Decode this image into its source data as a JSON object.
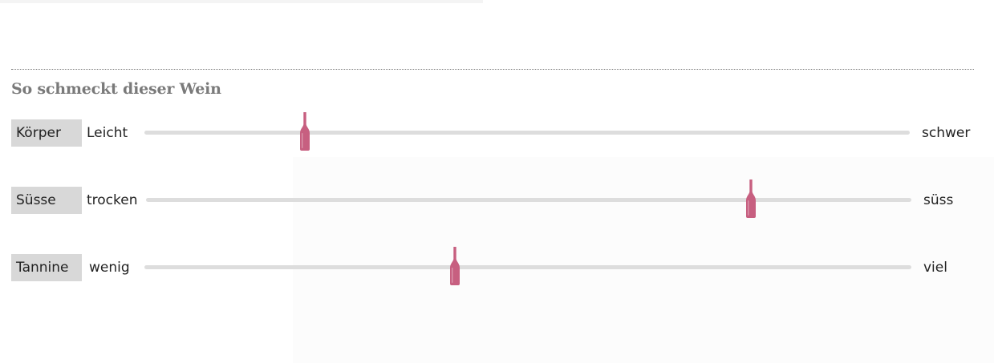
{
  "section": {
    "title": "So schmeckt dieser Wein"
  },
  "colors": {
    "marker": "#c75f80",
    "track": "#dddddd",
    "badge": "#d8d8d8",
    "title": "#7a7a7a"
  },
  "marker_icon": "wine-bottle-icon",
  "taste_profile": [
    {
      "name": "Körper",
      "low": "Leicht",
      "high": "schwer",
      "value": 0.21
    },
    {
      "name": "Süsse",
      "low": "trocken",
      "high": "süss",
      "value": 0.79
    },
    {
      "name": "Tannine",
      "low": "wenig",
      "high": "viel",
      "value": 0.405
    }
  ]
}
